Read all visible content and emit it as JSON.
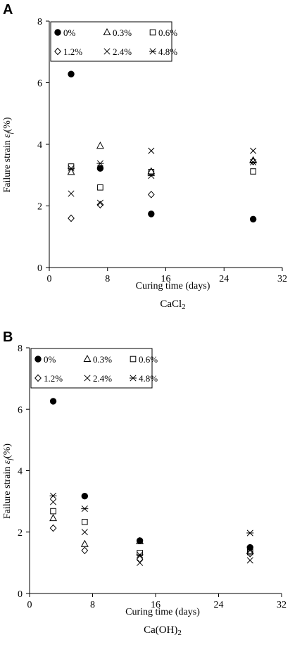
{
  "chart_data": [
    {
      "type": "scatter",
      "panel_label": "A",
      "caption": {
        "main": "CaCl",
        "sub": "2"
      },
      "xlabel": "Curing time  (days)",
      "ylabel": {
        "text": "Failure strain ",
        "symbol": "ε",
        "subscript": "f",
        "unit": "(%)"
      },
      "xlim": [
        0,
        32
      ],
      "ylim": [
        0,
        8
      ],
      "x_ticks": [
        0,
        8,
        16,
        24,
        32
      ],
      "y_ticks": [
        0,
        2,
        4,
        6,
        8
      ],
      "grid": false,
      "legend_position": "top-left",
      "series": [
        {
          "name": "0%",
          "marker": "filled-circle",
          "x": [
            3,
            7,
            14,
            28
          ],
          "y": [
            6.28,
            3.22,
            1.74,
            1.57
          ]
        },
        {
          "name": "0.3%",
          "marker": "triangle",
          "x": [
            3,
            7,
            14,
            28
          ],
          "y": [
            3.1,
            3.95,
            3.12,
            3.48
          ]
        },
        {
          "name": "0.6%",
          "marker": "square",
          "x": [
            3,
            7,
            14,
            28
          ],
          "y": [
            3.28,
            2.6,
            3.1,
            3.12
          ]
        },
        {
          "name": "1.2%",
          "marker": "diamond",
          "x": [
            3,
            7,
            14,
            28
          ],
          "y": [
            1.6,
            2.04,
            2.37,
            3.44
          ]
        },
        {
          "name": "2.4%",
          "marker": "cross",
          "x": [
            3,
            7,
            14,
            28
          ],
          "y": [
            2.4,
            2.1,
            3.79,
            3.79
          ]
        },
        {
          "name": "4.8%",
          "marker": "asterisk",
          "x": [
            3,
            7,
            14,
            28
          ],
          "y": [
            3.22,
            3.38,
            2.98,
            3.42
          ]
        }
      ]
    },
    {
      "type": "scatter",
      "panel_label": "B",
      "caption": {
        "main": "Ca(OH)",
        "sub": "2"
      },
      "xlabel": "Curing time  (days)",
      "ylabel": {
        "text": "Failure strain ",
        "symbol": "ε",
        "subscript": "f",
        "unit": "(%)"
      },
      "xlim": [
        0,
        32
      ],
      "ylim": [
        0,
        8
      ],
      "x_ticks": [
        0,
        8,
        16,
        24,
        32
      ],
      "y_ticks": [
        0,
        2,
        4,
        6,
        8
      ],
      "grid": false,
      "legend_position": "top-left",
      "series": [
        {
          "name": "0%",
          "marker": "filled-circle",
          "x": [
            3,
            7,
            14,
            28
          ],
          "y": [
            6.26,
            3.17,
            1.72,
            1.5
          ]
        },
        {
          "name": "0.3%",
          "marker": "triangle",
          "x": [
            3,
            7,
            14,
            28
          ],
          "y": [
            2.45,
            1.61,
            1.7,
            1.38
          ]
        },
        {
          "name": "0.6%",
          "marker": "square",
          "x": [
            3,
            7,
            14,
            28
          ],
          "y": [
            2.68,
            2.33,
            1.32,
            1.35
          ]
        },
        {
          "name": "1.2%",
          "marker": "diamond",
          "x": [
            3,
            7,
            14,
            28
          ],
          "y": [
            2.13,
            1.4,
            1.12,
            1.3
          ]
        },
        {
          "name": "2.4%",
          "marker": "cross",
          "x": [
            3,
            7,
            14,
            28
          ],
          "y": [
            2.98,
            2.0,
            1.0,
            1.08
          ]
        },
        {
          "name": "4.8%",
          "marker": "asterisk",
          "x": [
            3,
            7,
            14,
            28
          ],
          "y": [
            3.18,
            2.76,
            1.26,
            1.97
          ]
        }
      ]
    }
  ]
}
